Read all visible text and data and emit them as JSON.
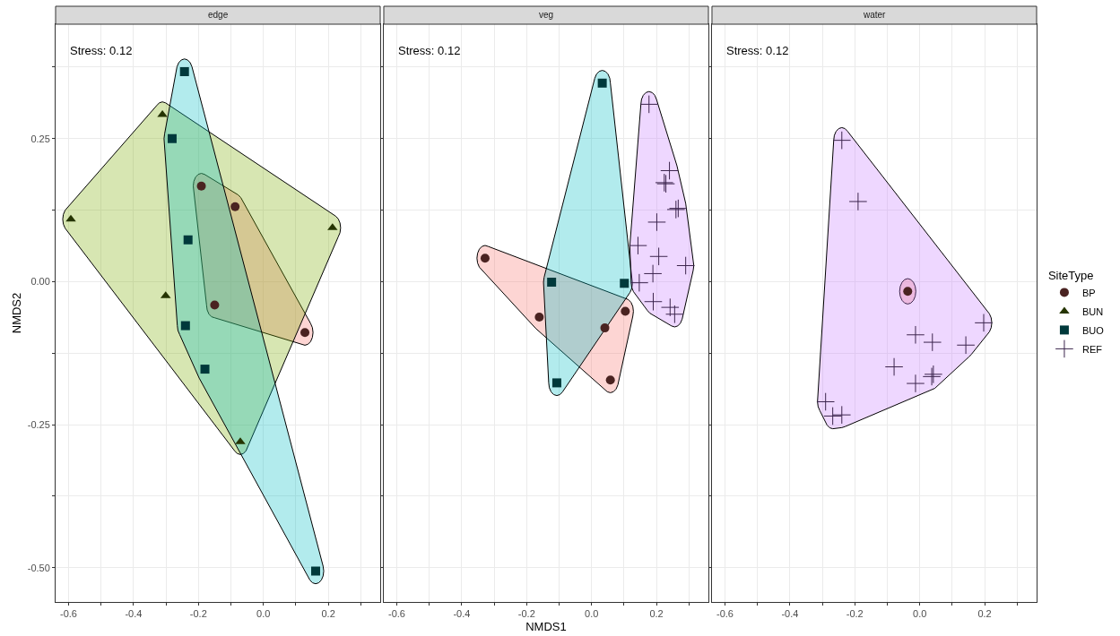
{
  "chart_data": [
    {
      "type": "scatter",
      "title": "edge",
      "ylabel": "NMDS2",
      "annotations": [
        "Stress: 0.12"
      ],
      "grid": true,
      "legend": "right",
      "xlim": [
        -0.64,
        0.36
      ],
      "ylim": [
        -0.56,
        0.45
      ],
      "xticks": [
        -0.6,
        {
          "value": -0.5,
          "label": null
        },
        -0.4,
        {
          "value": -0.3,
          "label": null
        },
        -0.2,
        {
          "value": -0.1,
          "label": null
        },
        "0.0",
        {
          "value": 0.1,
          "label": null
        },
        0.2,
        {
          "value": 0.3,
          "label": null
        }
      ],
      "yticks": [
        {
          "value": -0.5,
          "label": "-0.50"
        },
        {
          "value": -0.375,
          "label": null
        },
        {
          "value": -0.25,
          "label": "-0.25"
        },
        {
          "value": -0.125,
          "label": null
        },
        {
          "value": 0,
          "label": "0.00"
        },
        {
          "value": 0.125,
          "label": null
        },
        {
          "value": 0.25,
          "label": "0.25"
        },
        {
          "value": 0.375,
          "label": null
        }
      ],
      "series": [
        {
          "name": "BP",
          "color": "#4a2321",
          "marker": "circle",
          "x": [
            -0.191,
            -0.087,
            -0.15,
            0.128
          ],
          "values": [
            0.167,
            0.131,
            -0.041,
            -0.089
          ]
        },
        {
          "name": "BUN",
          "color": "#253400",
          "marker": "triangle",
          "x": [
            -0.593,
            -0.311,
            -0.301,
            -0.071,
            0.213
          ],
          "values": [
            0.109,
            0.292,
            -0.025,
            -0.28,
            0.094
          ]
        },
        {
          "name": "BUO",
          "color": "#00393b",
          "marker": "square",
          "x": [
            -0.243,
            -0.281,
            -0.232,
            -0.24,
            -0.18,
            0.161
          ],
          "values": [
            0.367,
            0.25,
            0.073,
            -0.077,
            -0.153,
            -0.506
          ]
        }
      ]
    },
    {
      "type": "scatter",
      "title": "veg",
      "xlabel": "NMDS1",
      "annotations": [
        "Stress: 0.12"
      ],
      "grid": true,
      "legend": "right",
      "tick_labels": "x",
      "xlim": [
        -0.64,
        0.36
      ],
      "ylim": [
        -0.56,
        0.45
      ],
      "xticks": [
        -0.6,
        {
          "value": -0.5,
          "label": null
        },
        -0.4,
        {
          "value": -0.3,
          "label": null
        },
        -0.2,
        {
          "value": -0.1,
          "label": null
        },
        "0.0",
        {
          "value": 0.1,
          "label": null
        },
        0.2,
        {
          "value": 0.3,
          "label": null
        }
      ],
      "yticks": [
        {
          "value": -0.5,
          "label": null
        },
        {
          "value": -0.375,
          "label": null
        },
        {
          "value": -0.25,
          "label": null
        },
        {
          "value": -0.125,
          "label": null
        },
        {
          "value": 0,
          "label": null
        },
        {
          "value": 0.125,
          "label": null
        },
        {
          "value": 0.25,
          "label": null
        },
        {
          "value": 0.375,
          "label": null
        }
      ],
      "series": [
        {
          "name": "BP",
          "color": "#4a2321",
          "marker": "circle",
          "x": [
            -0.328,
            -0.161,
            0.041,
            0.104,
            0.058
          ],
          "values": [
            0.041,
            -0.062,
            -0.081,
            -0.052,
            -0.172
          ]
        },
        {
          "name": "BUO",
          "color": "#00393b",
          "marker": "square",
          "x": [
            0.033,
            -0.123,
            0.101,
            -0.107
          ],
          "values": [
            0.347,
            -0.001,
            -0.003,
            -0.177
          ]
        },
        {
          "name": "REF",
          "color": "#3c254d",
          "marker": "cross",
          "x": [
            0.177,
            0.24,
            0.224,
            0.229,
            0.267,
            0.26,
            0.201,
            0.143,
            0.207,
            0.29,
            0.189,
            0.19,
            0.242,
            0.256,
            0.147
          ],
          "values": [
            0.31,
            0.194,
            0.173,
            0.171,
            0.128,
            0.126,
            0.104,
            0.063,
            0.044,
            0.028,
            0.014,
            -0.035,
            -0.045,
            -0.057,
            -0.002
          ]
        }
      ]
    },
    {
      "type": "scatter",
      "title": "water",
      "annotations": [
        "Stress: 0.12"
      ],
      "grid": true,
      "legend": "right",
      "legend_title": "SiteType",
      "tick_labels": "x",
      "xlim": [
        -0.64,
        0.36
      ],
      "ylim": [
        -0.56,
        0.45
      ],
      "xticks": [
        -0.6,
        {
          "value": -0.5,
          "label": null
        },
        -0.4,
        {
          "value": -0.3,
          "label": null
        },
        -0.2,
        {
          "value": -0.1,
          "label": null
        },
        "0.0",
        {
          "value": 0.1,
          "label": null
        },
        0.2,
        {
          "value": 0.3,
          "label": null
        }
      ],
      "yticks": [
        {
          "value": -0.5,
          "label": null
        },
        {
          "value": -0.375,
          "label": null
        },
        {
          "value": -0.25,
          "label": null
        },
        {
          "value": -0.125,
          "label": null
        },
        {
          "value": 0,
          "label": null
        },
        {
          "value": 0.125,
          "label": null
        },
        {
          "value": 0.25,
          "label": null
        },
        {
          "value": 0.375,
          "label": null
        }
      ],
      "series": [
        {
          "name": "BP",
          "color": "#4a2321",
          "marker": "circle",
          "x": [
            -0.037
          ],
          "values": [
            -0.017
          ]
        },
        {
          "name": "REF",
          "color": "#3c254d",
          "marker": "cross",
          "x": [
            -0.24,
            -0.19,
            -0.013,
            0.039,
            0.142,
            0.197,
            -0.079,
            0.042,
            0.037,
            -0.013,
            -0.29,
            -0.268,
            -0.24
          ],
          "values": [
            0.247,
            0.14,
            -0.093,
            -0.106,
            -0.111,
            -0.072,
            -0.149,
            -0.162,
            -0.166,
            -0.178,
            -0.21,
            -0.235,
            -0.233
          ]
        }
      ]
    }
  ]
}
